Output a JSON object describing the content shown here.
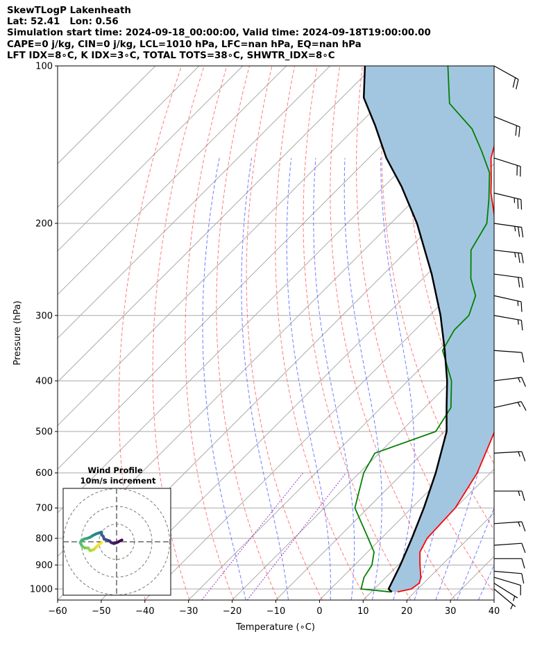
{
  "header": {
    "line1": "SkewTLogP Lakenheath",
    "line2": "Lat: 52.41   Lon: 0.56",
    "line3": "Simulation start time: 2024-09-18_00:00:00, Valid time: 2024-09-18T19:00:00.00",
    "line4": "CAPE=0 j/kg, CIN=0 j/kg, LCL=1010 hPa, LFC=nan hPa, EQ=nan hPa",
    "line5": "LFT IDX=8∘C, K IDX=3∘C, TOTAL TOTS=38∘C, SHWTR_IDX=8∘C"
  },
  "chart_data": {
    "type": "line",
    "xlabel": "Temperature (∘C)",
    "ylabel": "Pressure (hPa)",
    "xlim": [
      -60,
      40
    ],
    "ylim": [
      1050,
      100
    ],
    "yscale": "log",
    "skew_deg": 45,
    "grid": true,
    "x_ticks": [
      "−60",
      "−50",
      "−40",
      "−30",
      "−20",
      "−10",
      "0",
      "10",
      "20",
      "30",
      "40"
    ],
    "y_ticks": [
      "1000",
      "900",
      "800",
      "700",
      "600",
      "500",
      "400",
      "300",
      "200",
      "100"
    ],
    "y_tick_values": [
      1000,
      900,
      800,
      700,
      600,
      500,
      400,
      300,
      200,
      100
    ],
    "colors": {
      "temperature": "#ff0000",
      "dewpoint": "#008000",
      "parcel": "#000000",
      "fill": "#a3c6e0",
      "isotherm": "#aaaaaa",
      "dry_adiabat": "#ff5050",
      "moist_adiabat": "#4b5cff",
      "mixing_ratio": "#9b30c8"
    },
    "series": [
      {
        "key": "temperature",
        "points": [
          [
            16.0,
            1013
          ],
          [
            18.5,
            1000
          ],
          [
            19.0,
            975
          ],
          [
            18.0,
            950
          ],
          [
            15.0,
            900
          ],
          [
            12.0,
            850
          ],
          [
            10.5,
            800
          ],
          [
            10.0,
            700
          ],
          [
            7.0,
            600
          ],
          [
            1.5,
            500
          ],
          [
            -3.0,
            450
          ],
          [
            -8.0,
            400
          ],
          [
            -14.5,
            350
          ],
          [
            -21.5,
            300
          ],
          [
            -28.5,
            270
          ],
          [
            -34.0,
            250
          ],
          [
            -46.0,
            200
          ],
          [
            -54.0,
            175
          ],
          [
            -57.0,
            165
          ],
          [
            -62.0,
            150
          ],
          [
            -69.0,
            125
          ],
          [
            -73.0,
            110
          ],
          [
            -75.0,
            100
          ]
        ]
      },
      {
        "key": "dewpoint",
        "points": [
          [
            14.5,
            1013
          ],
          [
            7.0,
            1000
          ],
          [
            6.0,
            975
          ],
          [
            5.0,
            950
          ],
          [
            4.0,
            900
          ],
          [
            1.5,
            850
          ],
          [
            -3.0,
            800
          ],
          [
            -13.0,
            700
          ],
          [
            -19.0,
            600
          ],
          [
            -21.0,
            550
          ],
          [
            -12.0,
            500
          ],
          [
            -14.0,
            450
          ],
          [
            -20.0,
            400
          ],
          [
            -29.0,
            350
          ],
          [
            -31.0,
            320
          ],
          [
            -31.0,
            300
          ],
          [
            -34.0,
            275
          ],
          [
            -39.0,
            255
          ],
          [
            -45.5,
            225
          ],
          [
            -48.0,
            200
          ],
          [
            -53.0,
            180
          ],
          [
            -59.0,
            160
          ],
          [
            -66.0,
            145
          ],
          [
            -73.0,
            132
          ],
          [
            -84.0,
            118
          ],
          [
            -93.0,
            100
          ]
        ]
      },
      {
        "key": "parcel",
        "points": [
          [
            14.7,
            1013
          ],
          [
            13.3,
            1000
          ],
          [
            10.5,
            900
          ],
          [
            7.0,
            800
          ],
          [
            2.8,
            700
          ],
          [
            -2.5,
            600
          ],
          [
            -9.5,
            500
          ],
          [
            -15.0,
            450
          ],
          [
            -21.0,
            400
          ],
          [
            -28.5,
            350
          ],
          [
            -37.5,
            300
          ],
          [
            -49.0,
            250
          ],
          [
            -64.0,
            200
          ],
          [
            -76.0,
            170
          ],
          [
            -86.0,
            150
          ],
          [
            -96.0,
            130
          ],
          [
            -105.0,
            115
          ],
          [
            -112.0,
            100
          ]
        ]
      }
    ],
    "dry_adiabats_K": [
      230,
      240,
      250,
      260,
      270,
      280,
      290,
      300,
      310,
      320,
      330,
      340,
      350,
      360
    ],
    "moist_adiabats_C": [
      -20,
      -10,
      0,
      5,
      10,
      15,
      20,
      25,
      30,
      35
    ],
    "mixing_ratio_gkg": [
      0.4,
      1.0
    ],
    "wind_barbs": [
      {
        "p": 100,
        "u": -18,
        "v": 10
      },
      {
        "p": 125,
        "u": -20,
        "v": 8
      },
      {
        "p": 150,
        "u": -22,
        "v": 7
      },
      {
        "p": 175,
        "u": -25,
        "v": 6
      },
      {
        "p": 200,
        "u": -28,
        "v": 4
      },
      {
        "p": 225,
        "u": -26,
        "v": 3
      },
      {
        "p": 250,
        "u": -22,
        "v": 3
      },
      {
        "p": 275,
        "u": -18,
        "v": 4
      },
      {
        "p": 300,
        "u": -17,
        "v": 3
      },
      {
        "p": 350,
        "u": -14,
        "v": 1
      },
      {
        "p": 400,
        "u": -16,
        "v": -2
      },
      {
        "p": 450,
        "u": -18,
        "v": -4
      },
      {
        "p": 550,
        "u": -18,
        "v": -1
      },
      {
        "p": 650,
        "u": -16,
        "v": 0
      },
      {
        "p": 750,
        "u": -15,
        "v": -1
      },
      {
        "p": 825,
        "u": -14,
        "v": -1
      },
      {
        "p": 875,
        "u": -13,
        "v": 0
      },
      {
        "p": 925,
        "u": -12,
        "v": 1
      },
      {
        "p": 950,
        "u": -10,
        "v": 3
      },
      {
        "p": 975,
        "u": -8,
        "v": 5
      },
      {
        "p": 1000,
        "u": -6,
        "v": 5
      }
    ],
    "hodograph": {
      "title": "Wind Profile",
      "subtitle": "10m/s increment",
      "rings_ms": [
        10,
        20,
        30
      ],
      "points": [
        [
          3,
          1
        ],
        [
          0,
          -0.5
        ],
        [
          -1.5,
          -1
        ],
        [
          -3,
          -0.5
        ],
        [
          -4,
          0.5
        ],
        [
          -5.5,
          1
        ],
        [
          -7,
          1.5
        ],
        [
          -7.5,
          3
        ],
        [
          -8.5,
          4
        ],
        [
          -8.5,
          5.5
        ],
        [
          -10,
          5
        ],
        [
          -11.5,
          4.5
        ],
        [
          -13.5,
          3.5
        ],
        [
          -15,
          2.5
        ],
        [
          -16.5,
          2
        ],
        [
          -18.5,
          1.5
        ],
        [
          -20,
          0.5
        ],
        [
          -20.5,
          -0.5
        ],
        [
          -19.5,
          -2.5
        ],
        [
          -18,
          -3.5
        ],
        [
          -16,
          -3.5
        ],
        [
          -15,
          -5
        ],
        [
          -13,
          -4.5
        ],
        [
          -11.5,
          -3
        ],
        [
          -10,
          -1.5
        ],
        [
          -8.5,
          -0.5
        ]
      ]
    }
  }
}
